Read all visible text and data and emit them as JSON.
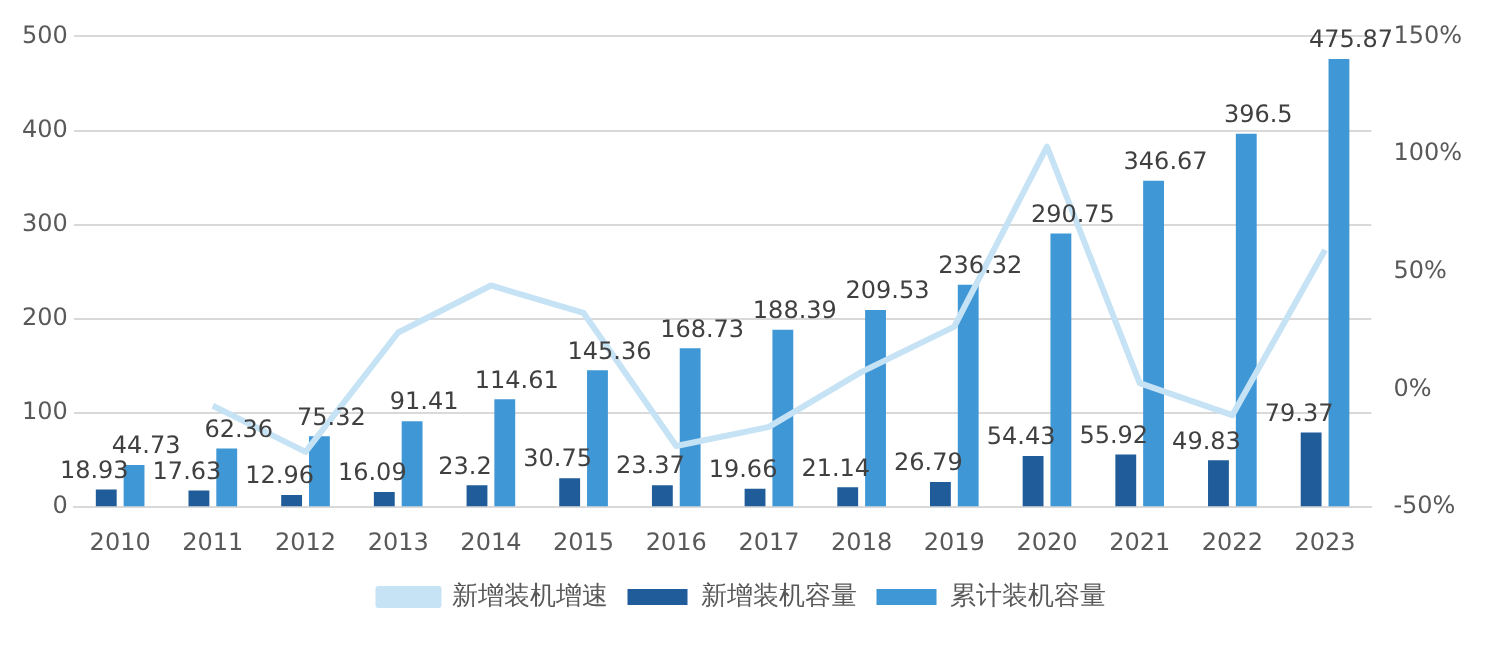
{
  "chart_data": {
    "type": "bar",
    "categories": [
      "2010",
      "2011",
      "2012",
      "2013",
      "2014",
      "2015",
      "2016",
      "2017",
      "2018",
      "2019",
      "2020",
      "2021",
      "2022",
      "2023"
    ],
    "series": [
      {
        "name": "新增装机容量",
        "color": "#1f5c99",
        "values": [
          18.93,
          17.63,
          12.96,
          16.09,
          23.2,
          30.75,
          23.37,
          19.66,
          21.14,
          26.79,
          54.43,
          55.92,
          49.83,
          79.37
        ],
        "value_labels": [
          "18.93",
          "17.63",
          "12.96",
          "16.09",
          "23.2",
          "30.75",
          "23.37",
          "19.66",
          "21.14",
          "26.79",
          "54.43",
          "55.92",
          "49.83",
          "79.37"
        ]
      },
      {
        "name": "累计装机容量",
        "color": "#3f97d6",
        "values": [
          44.73,
          62.36,
          75.32,
          91.41,
          114.61,
          145.36,
          168.73,
          188.39,
          209.53,
          236.32,
          290.75,
          346.67,
          396.5,
          475.87
        ],
        "value_labels": [
          "44.73",
          "62.36",
          "75.32",
          "91.41",
          "114.61",
          "145.36",
          "168.73",
          "188.39",
          "209.53",
          "236.32",
          "290.75",
          "346.67",
          "396.5",
          "475.87"
        ]
      },
      {
        "name": "新增装机增速",
        "type": "line",
        "axis": "y2",
        "color": "#c6e2f5",
        "values": [
          null,
          -6.9,
          -26.5,
          24.2,
          44.2,
          32.5,
          -24.0,
          -15.9,
          7.5,
          26.7,
          103.2,
          2.7,
          -10.9,
          59.3
        ]
      }
    ],
    "ylim": [
      0,
      500
    ],
    "yticks": [
      0,
      100,
      200,
      300,
      400,
      500
    ],
    "y2lim": [
      -50,
      150
    ],
    "y2ticks": [
      {
        "value": -50,
        "label": "-50%"
      },
      {
        "value": 0,
        "label": "0%"
      },
      {
        "value": 50,
        "label": "50%"
      },
      {
        "value": 100,
        "label": "100%"
      },
      {
        "value": 150,
        "label": "150%"
      }
    ],
    "grid": "y",
    "legend": "bottom",
    "marker": "none",
    "line_style": "solid"
  }
}
